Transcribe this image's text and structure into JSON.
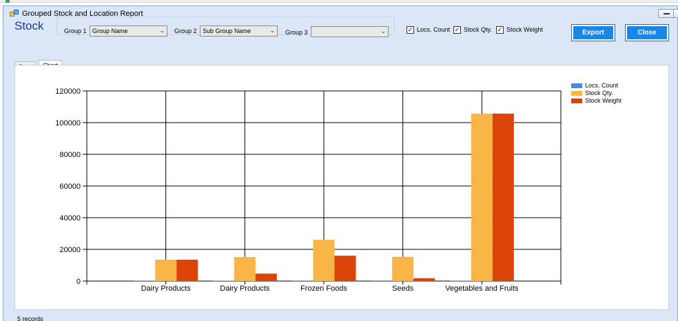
{
  "window": {
    "title": "Grouped Stock and Location Report"
  },
  "header": {
    "stock_label": "Stock",
    "group1": {
      "label": "Group 1",
      "value": "Group Name"
    },
    "group2": {
      "label": "Group 2",
      "value": "Sub Group Name"
    },
    "group3": {
      "label": "Group 3",
      "value": ""
    },
    "checkboxes": [
      {
        "label": "Locs. Count",
        "checked": true
      },
      {
        "label": "Stock Qty.",
        "checked": true
      },
      {
        "label": "Stock Weight",
        "checked": true
      }
    ],
    "export_label": "Export",
    "close_label": "Close"
  },
  "tabs": [
    {
      "label": "Data",
      "active": false
    },
    {
      "label": "Chart",
      "active": true
    }
  ],
  "status_text": "5 records",
  "colors": {
    "locs_count": "#3f8ee6",
    "stock_qty": "#fab547",
    "stock_weight": "#dd4408",
    "accent": "#1a86e8"
  },
  "chart_data": {
    "type": "bar",
    "categories": [
      "Dairy Products",
      "Dairy Products",
      "Frozen Foods",
      "Seeds",
      "Vegetables and Fruits"
    ],
    "series": [
      {
        "name": "Locs. Count",
        "values": [
          150,
          200,
          300,
          100,
          250
        ]
      },
      {
        "name": "Stock Qty.",
        "values": [
          13500,
          15200,
          26000,
          15300,
          105700
        ]
      },
      {
        "name": "Stock Weight",
        "values": [
          13500,
          4700,
          16000,
          1800,
          105700
        ]
      }
    ],
    "ylim": [
      0,
      120000
    ],
    "yticks": [
      "0",
      "20000",
      "40000",
      "60000",
      "80000",
      "100000",
      "120000"
    ],
    "grid": true,
    "legend": "top-right"
  }
}
